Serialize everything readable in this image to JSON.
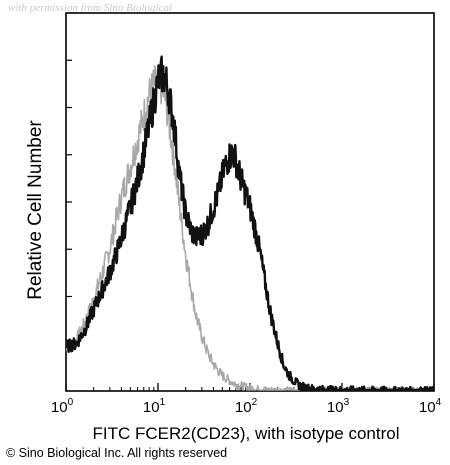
{
  "watermark": "with permission from Sino Biological",
  "copyright": "© Sino Biological Inc. All rights reserved",
  "chart_data": {
    "type": "line",
    "title": "",
    "xlabel": "FITC FCER2(CD23), with isotype control",
    "ylabel": "Relative Cell Number",
    "xscale": "log",
    "xlim": [
      1,
      10000
    ],
    "ylim": [
      0,
      1
    ],
    "x_ticks": [
      {
        "value": 1,
        "base": "10",
        "exp": "0"
      },
      {
        "value": 10,
        "base": "10",
        "exp": "1"
      },
      {
        "value": 100,
        "base": "10",
        "exp": "2"
      },
      {
        "value": 1000,
        "base": "10",
        "exp": "3"
      },
      {
        "value": 10000,
        "base": "10",
        "exp": "4"
      }
    ],
    "grid": false,
    "legend": "none",
    "series": [
      {
        "role": "sample",
        "color": "#111111",
        "x": [
          1,
          1.3,
          1.6,
          2,
          2.5,
          3,
          3.5,
          4,
          5,
          6,
          7,
          8,
          9,
          10,
          11,
          12,
          13,
          15,
          17,
          20,
          23,
          26,
          30,
          35,
          40,
          45,
          50,
          55,
          60,
          65,
          70,
          80,
          90,
          100,
          115,
          130,
          150,
          170,
          200,
          230,
          260,
          300,
          350,
          400,
          500,
          700,
          1000,
          2000,
          5000,
          10000
        ],
        "y": [
          0.13,
          0.14,
          0.18,
          0.24,
          0.3,
          0.35,
          0.4,
          0.45,
          0.54,
          0.62,
          0.7,
          0.78,
          0.85,
          0.91,
          0.93,
          0.92,
          0.88,
          0.78,
          0.64,
          0.52,
          0.47,
          0.45,
          0.46,
          0.49,
          0.54,
          0.58,
          0.63,
          0.67,
          0.69,
          0.7,
          0.68,
          0.62,
          0.58,
          0.54,
          0.47,
          0.4,
          0.3,
          0.22,
          0.14,
          0.08,
          0.05,
          0.03,
          0.015,
          0.01,
          0.005,
          0.003,
          0.002,
          0.001,
          0,
          0
        ]
      },
      {
        "role": "isotype control",
        "color": "#a8a8a8",
        "x": [
          1,
          1.3,
          1.6,
          2,
          2.5,
          3,
          3.5,
          4,
          5,
          6,
          7,
          8,
          9,
          10,
          11,
          12,
          13,
          15,
          17,
          20,
          23,
          26,
          30,
          35,
          40,
          45,
          50,
          60,
          70,
          80,
          100,
          130,
          150,
          200,
          300,
          1000,
          10000
        ],
        "y": [
          0.13,
          0.15,
          0.2,
          0.27,
          0.35,
          0.42,
          0.5,
          0.57,
          0.66,
          0.74,
          0.81,
          0.87,
          0.9,
          0.91,
          0.89,
          0.86,
          0.8,
          0.68,
          0.55,
          0.4,
          0.3,
          0.22,
          0.16,
          0.11,
          0.08,
          0.06,
          0.045,
          0.03,
          0.02,
          0.015,
          0.008,
          0.004,
          0.002,
          0.001,
          0,
          0,
          0
        ]
      }
    ]
  }
}
